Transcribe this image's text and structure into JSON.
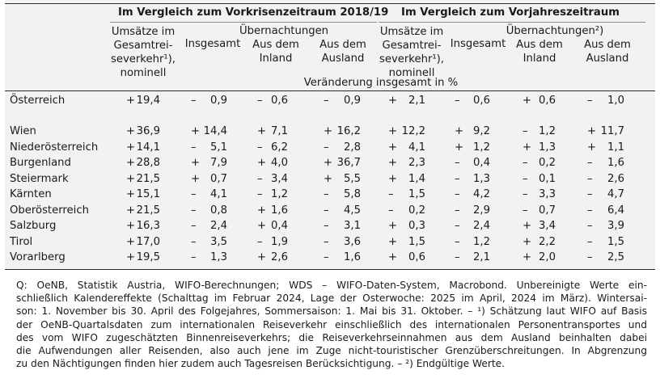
{
  "header": {
    "group1_title": "Im Vergleich zum Vorkrisenzeitraum 2018/19",
    "group2_title": "Im Vergleich zum Vorjahreszeitraum",
    "g1": {
      "umsaetze": [
        "Umsätze im",
        "Gesamtrei-",
        "severkehr¹),",
        "nominell"
      ],
      "uebernachtungen": "Übernachtungen",
      "insgesamt": "Insgesamt",
      "inland": [
        "Aus dem",
        "Inland"
      ],
      "ausland": [
        "Aus dem",
        "Ausland"
      ]
    },
    "g2": {
      "umsaetze": [
        "Umsätze im",
        "Gesamtrei-",
        "severkehr¹),",
        "nominell"
      ],
      "uebernachtungen": "Übernachtungen²)",
      "insgesamt": "Insgesamt",
      "inland": [
        "Aus dem",
        "Inland"
      ],
      "ausland": [
        "Aus dem",
        "Ausland"
      ]
    },
    "unit": "Veränderung insgesamt in %"
  },
  "rows": [
    {
      "region": "Österreich",
      "values": [
        "+ 19,4",
        "– 0,9",
        "– 0,6",
        "– 0,9",
        "+ 2,1",
        "– 0,6",
        "+ 0,6",
        "– 1,0"
      ]
    },
    {
      "region": "Wien",
      "values": [
        "+ 36,9",
        "+ 14,4",
        "+ 7,1",
        "+ 16,2",
        "+ 12,2",
        "+ 9,2",
        "– 1,2",
        "+ 11,7"
      ]
    },
    {
      "region": "Niederösterreich",
      "values": [
        "+ 14,1",
        "– 5,1",
        "– 6,2",
        "– 2,8",
        "+ 4,1",
        "+ 1,2",
        "+ 1,3",
        "+ 1,1"
      ]
    },
    {
      "region": "Burgenland",
      "values": [
        "+ 28,8",
        "+ 7,9",
        "+ 4,0",
        "+ 36,7",
        "+ 2,3",
        "– 0,4",
        "– 0,2",
        "– 1,6"
      ]
    },
    {
      "region": "Steiermark",
      "values": [
        "+ 21,5",
        "+ 0,7",
        "– 3,4",
        "+ 5,5",
        "+ 1,4",
        "– 1,3",
        "– 0,1",
        "– 2,6"
      ]
    },
    {
      "region": "Kärnten",
      "values": [
        "+ 15,1",
        "– 4,1",
        "– 1,2",
        "– 5,8",
        "– 1,5",
        "– 4,2",
        "– 3,3",
        "– 4,7"
      ]
    },
    {
      "region": "Oberösterreich",
      "values": [
        "+ 21,5",
        "– 0,8",
        "+ 1,6",
        "– 4,5",
        "– 0,2",
        "– 2,9",
        "– 0,7",
        "– 6,4"
      ]
    },
    {
      "region": "Salzburg",
      "values": [
        "+ 16,3",
        "– 2,4",
        "+ 0,4",
        "– 3,1",
        "+ 0,3",
        "– 2,4",
        "+ 3,4",
        "– 3,9"
      ]
    },
    {
      "region": "Tirol",
      "values": [
        "+ 17,0",
        "– 3,5",
        "– 1,9",
        "– 3,6",
        "+ 1,5",
        "– 1,2",
        "+ 2,2",
        "– 1,5"
      ]
    },
    {
      "region": "Vorarlberg",
      "values": [
        "+ 19,5",
        "– 1,3",
        "+ 2,6",
        "– 1,6",
        "+ 0,6",
        "– 2,1",
        "+ 2,0",
        "– 2,5"
      ]
    }
  ],
  "footnote": [
    "Q: OeNB, Statistik Austria, WIFO-Berechnungen; WDS – WIFO-Daten-System, Macrobond. Unbereinigte Werte ein-",
    "schließlich Kalendereffekte (Schalttag im Februar 2024, Lage der Osterwoche: 2025 im April, 2024 im März). Wintersai-",
    "son: 1. November bis 30. April des Folgejahres, Sommersaison: 1. Mai bis 31. Oktober. – ¹) Schätzung laut WIFO auf Basis",
    "der OeNB-Quartalsdaten zum internationalen Reiseverkehr einschließlich des internationalen Personentransportes und",
    "des vom WIFO zugeschätzten Binnenreiseverkehrs; die Reiseverkehrseinnahmen aus dem Ausland beinhalten dabei",
    "die Aufwendungen aller Reisenden, also auch jene im Zuge nicht-touristischer Grenzüberschreitungen. In Abgrenzung",
    "zu den Nächtigungen finden hier zudem auch Tagesreisen Berücksichtigung. – ²) Endgültige Werte."
  ]
}
